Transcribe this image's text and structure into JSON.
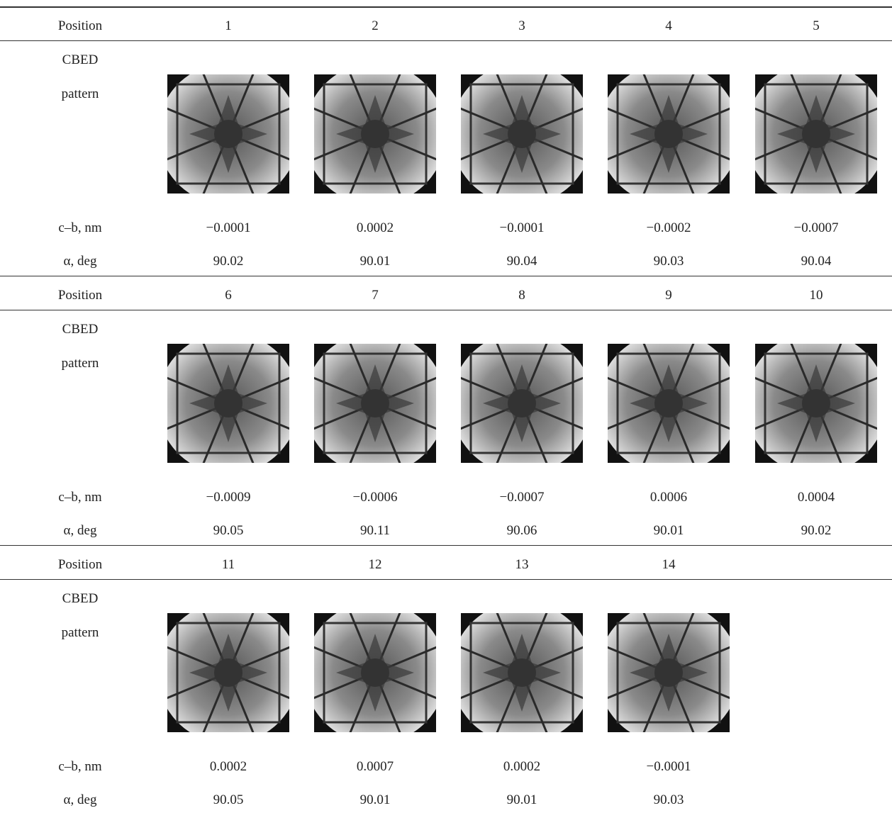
{
  "table": {
    "blocks": [
      {
        "labels": {
          "position": "Position",
          "cbed": "CBED",
          "pattern": "pattern",
          "cb": "c–b, nm",
          "alpha": "α, deg"
        },
        "positions": [
          "1",
          "2",
          "3",
          "4",
          "5"
        ],
        "cb": [
          "−0.0001",
          "0.0002",
          "−0.0001",
          "−0.0002",
          "−0.0007"
        ],
        "alpha": [
          "90.02",
          "90.01",
          "90.04",
          "90.03",
          "90.04"
        ]
      },
      {
        "labels": {
          "position": "Position",
          "cbed": "CBED",
          "pattern": "pattern",
          "cb": "c–b, nm",
          "alpha": "α, deg"
        },
        "positions": [
          "6",
          "7",
          "8",
          "9",
          "10"
        ],
        "cb": [
          "−0.0009",
          "−0.0006",
          "−0.0007",
          "0.0006",
          "0.0004"
        ],
        "alpha": [
          "90.05",
          "90.11",
          "90.06",
          "90.01",
          "90.02"
        ]
      },
      {
        "labels": {
          "position": "Position",
          "cbed": "CBED",
          "pattern": "pattern",
          "cb": "c–b, nm",
          "alpha": "α, deg"
        },
        "positions": [
          "11",
          "12",
          "13",
          "14"
        ],
        "cb": [
          "0.0002",
          "0.0007",
          "0.0002",
          "−0.0001"
        ],
        "alpha": [
          "90.05",
          "90.01",
          "90.01",
          "90.03"
        ]
      }
    ]
  }
}
